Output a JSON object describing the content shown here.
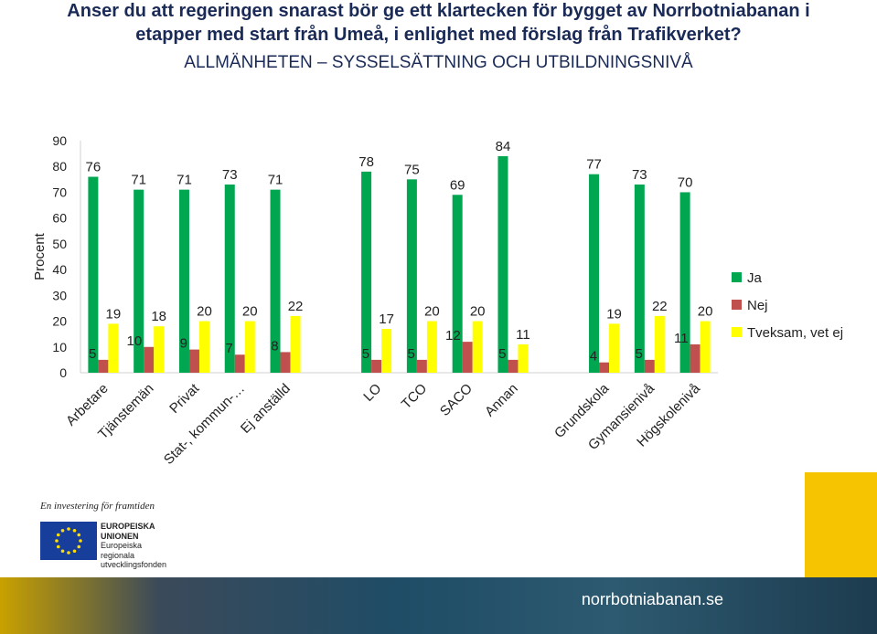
{
  "title_line1": "Anser du att regeringen snarast bör ge ett klartecken för bygget av Norrbotniabanan i",
  "title_line2": "etapper med start från Umeå, i enlighet med förslag från Trafikverket?",
  "subtitle": "ALLMÄNHETEN – SYSSELSÄTTNING OCH UTBILDNINGSNIVÅ",
  "footer": {
    "tagline": "En investering för framtiden",
    "eu_line1": "EUROPEISKA",
    "eu_line2": "UNIONEN",
    "eu_line3": "Europeiska",
    "eu_line4": "regionala",
    "eu_line5": "utvecklingsfonden",
    "site": "norrbotniabanan.se"
  },
  "chart_data": {
    "type": "bar",
    "ylabel": "Procent",
    "ylim": [
      0,
      90
    ],
    "yticks": [
      0,
      10,
      20,
      30,
      40,
      50,
      60,
      70,
      80,
      90
    ],
    "legend_position": "right",
    "groups": [
      [
        "Arbetare",
        "Tjänstemän",
        "Privat",
        "Stat-, kommun-…",
        "Ej anställd"
      ],
      [
        "LO",
        "TCO",
        "SACO",
        "Annan"
      ],
      [
        "Grundskola",
        "Gymansienivå",
        "Högskolenivå"
      ]
    ],
    "categories": [
      "Arbetare",
      "Tjänstemän",
      "Privat",
      "Stat-, kommun-…",
      "Ej anställd",
      "LO",
      "TCO",
      "SACO",
      "Annan",
      "Grundskola",
      "Gymansienivå",
      "Högskolenivå"
    ],
    "series": [
      {
        "name": "Ja",
        "color": "#00a650",
        "values": [
          76,
          71,
          71,
          73,
          71,
          78,
          75,
          69,
          84,
          77,
          73,
          70
        ]
      },
      {
        "name": "Nej",
        "color": "#c0504d",
        "values": [
          5,
          10,
          9,
          7,
          8,
          5,
          5,
          12,
          5,
          4,
          5,
          11
        ]
      },
      {
        "name": "Tveksam, vet ej",
        "color": "#ffff00",
        "values": [
          19,
          18,
          20,
          20,
          22,
          17,
          20,
          20,
          11,
          19,
          22,
          20
        ]
      }
    ]
  }
}
